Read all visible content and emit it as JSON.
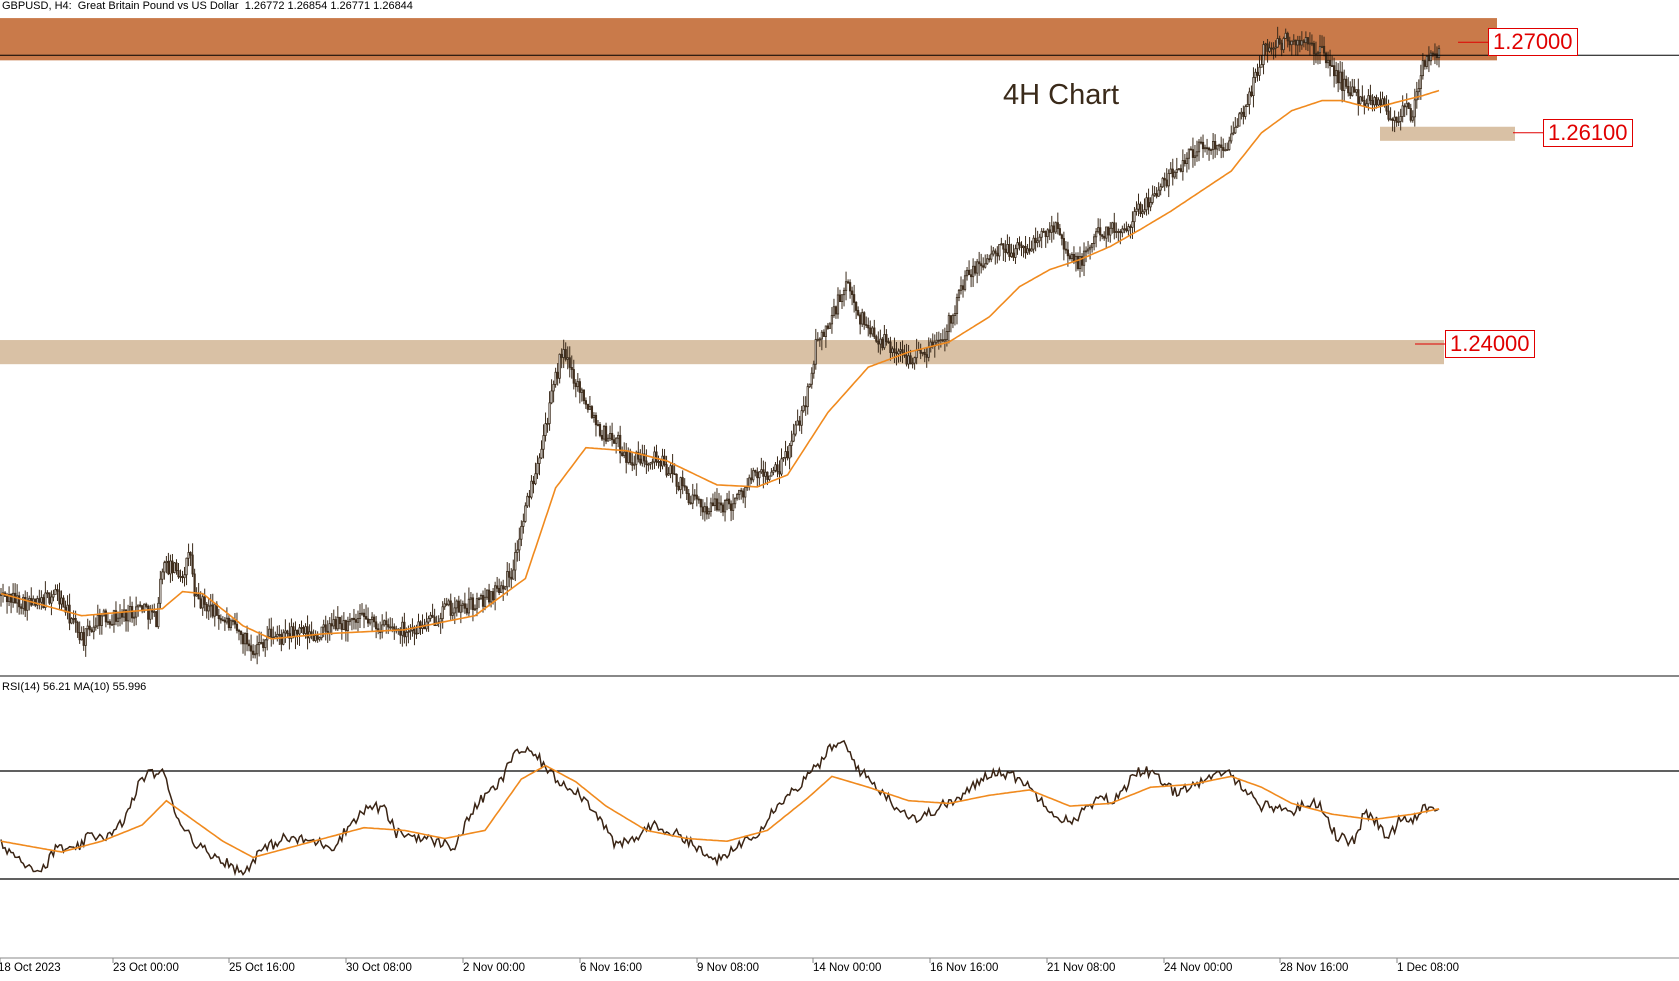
{
  "header": {
    "symbol_info": "GBPUSD, H4:  Great Britain Pound vs US Dollar  1.26772 1.26854 1.26771 1.26844"
  },
  "annotation": {
    "label": "4H Chart"
  },
  "levels": [
    {
      "label": "1.27000",
      "value": 1.27,
      "zone_low": 1.268,
      "zone_high": 1.2722,
      "color": "#c97a4a"
    },
    {
      "label": "1.26100",
      "value": 1.261,
      "zone_low": 1.26,
      "zone_high": 1.2614,
      "color": "#d9c1a5"
    },
    {
      "label": "1.24000",
      "value": 1.24,
      "zone_low": 1.2378,
      "zone_high": 1.2402,
      "color": "#d9c1a5"
    }
  ],
  "rsi": {
    "label": "RSI(14) 56.21 MA(10) 55.996",
    "rsi_value": 56.21,
    "ma_value": 55.996,
    "levels": [
      70,
      30
    ],
    "line_color": "#3a2414",
    "ma_color": "#f08a1e"
  },
  "chart_data": {
    "type": "candlestick",
    "symbol": "GBPUSD",
    "timeframe": "H4",
    "moving_average_color": "#f08a1e",
    "x_tick_labels": [
      "18 Oct 2023",
      "23 Oct 00:00",
      "25 Oct 16:00",
      "30 Oct 08:00",
      "2 Nov 00:00",
      "6 Nov 16:00",
      "9 Nov 08:00",
      "14 Nov 00:00",
      "16 Nov 16:00",
      "21 Nov 08:00",
      "24 Nov 00:00",
      "28 Nov 16:00",
      "1 Dec 08:00"
    ],
    "ylim": [
      1.208,
      1.2736
    ],
    "close_path": [
      [
        0,
        1.2148
      ],
      [
        18,
        1.2138
      ],
      [
        27,
        1.2152
      ],
      [
        36,
        1.212
      ],
      [
        41,
        1.2105
      ],
      [
        48,
        1.2125
      ],
      [
        60,
        1.2128
      ],
      [
        70,
        1.2138
      ],
      [
        77,
        1.2125
      ],
      [
        80,
        1.2178
      ],
      [
        90,
        1.217
      ],
      [
        94,
        1.219
      ],
      [
        96,
        1.2145
      ],
      [
        104,
        1.2135
      ],
      [
        110,
        1.2125
      ],
      [
        118,
        1.211
      ],
      [
        126,
        1.2095
      ],
      [
        133,
        1.211
      ],
      [
        140,
        1.2105
      ],
      [
        146,
        1.2112
      ],
      [
        155,
        1.2108
      ],
      [
        160,
        1.2112
      ],
      [
        166,
        1.212
      ],
      [
        173,
        1.2118
      ],
      [
        180,
        1.2125
      ],
      [
        187,
        1.2118
      ],
      [
        194,
        1.2115
      ],
      [
        204,
        1.2115
      ],
      [
        212,
        1.212
      ],
      [
        220,
        1.2135
      ],
      [
        228,
        1.2135
      ],
      [
        238,
        1.2142
      ],
      [
        246,
        1.2155
      ],
      [
        253,
        1.217
      ],
      [
        262,
        1.225
      ],
      [
        272,
        1.2335
      ],
      [
        278,
        1.239
      ],
      [
        286,
        1.2358
      ],
      [
        292,
        1.2335
      ],
      [
        298,
        1.231
      ],
      [
        304,
        1.2305
      ],
      [
        311,
        1.2285
      ],
      [
        317,
        1.2282
      ],
      [
        323,
        1.2288
      ],
      [
        330,
        1.2275
      ],
      [
        338,
        1.2255
      ],
      [
        344,
        1.224
      ],
      [
        350,
        1.2235
      ],
      [
        356,
        1.2238
      ],
      [
        362,
        1.224
      ],
      [
        368,
        1.2252
      ],
      [
        374,
        1.2268
      ],
      [
        380,
        1.2268
      ],
      [
        386,
        1.2272
      ],
      [
        392,
        1.23
      ],
      [
        400,
        1.235
      ],
      [
        404,
        1.2395
      ],
      [
        411,
        1.242
      ],
      [
        415,
        1.244
      ],
      [
        420,
        1.2455
      ],
      [
        426,
        1.2425
      ],
      [
        432,
        1.241
      ],
      [
        438,
        1.24
      ],
      [
        448,
        1.2385
      ],
      [
        458,
        1.239
      ],
      [
        468,
        1.241
      ],
      [
        478,
        1.2462
      ],
      [
        488,
        1.2482
      ],
      [
        498,
        1.2492
      ],
      [
        508,
        1.2492
      ],
      [
        518,
        1.2508
      ],
      [
        524,
        1.252
      ],
      [
        530,
        1.248
      ],
      [
        536,
        1.248
      ],
      [
        544,
        1.251
      ],
      [
        556,
        1.2512
      ],
      [
        566,
        1.2535
      ],
      [
        576,
        1.2555
      ],
      [
        584,
        1.2575
      ],
      [
        590,
        1.259
      ],
      [
        600,
        1.2595
      ],
      [
        610,
        1.26
      ],
      [
        620,
        1.265
      ],
      [
        626,
        1.269
      ],
      [
        632,
        1.2695
      ],
      [
        638,
        1.27
      ],
      [
        648,
        1.2695
      ],
      [
        654,
        1.269
      ],
      [
        660,
        1.2672
      ],
      [
        666,
        1.2655
      ],
      [
        672,
        1.2645
      ],
      [
        678,
        1.264
      ],
      [
        684,
        1.2642
      ],
      [
        690,
        1.262
      ],
      [
        696,
        1.2632
      ],
      [
        700,
        1.2625
      ],
      [
        705,
        1.2675
      ],
      [
        711,
        1.269
      ],
      [
        713,
        1.2684
      ]
    ],
    "moving_average_path": [
      [
        0,
        1.215
      ],
      [
        40,
        1.2128
      ],
      [
        80,
        1.2135
      ],
      [
        90,
        1.2152
      ],
      [
        100,
        1.215
      ],
      [
        120,
        1.2118
      ],
      [
        134,
        1.2105
      ],
      [
        160,
        1.211
      ],
      [
        200,
        1.2114
      ],
      [
        235,
        1.2128
      ],
      [
        260,
        1.2165
      ],
      [
        275,
        1.2255
      ],
      [
        290,
        1.2295
      ],
      [
        310,
        1.2292
      ],
      [
        330,
        1.2282
      ],
      [
        355,
        1.2258
      ],
      [
        375,
        1.2256
      ],
      [
        390,
        1.2268
      ],
      [
        410,
        1.233
      ],
      [
        430,
        1.2375
      ],
      [
        450,
        1.239
      ],
      [
        470,
        1.24
      ],
      [
        490,
        1.2425
      ],
      [
        505,
        1.2455
      ],
      [
        520,
        1.2472
      ],
      [
        535,
        1.2482
      ],
      [
        550,
        1.2495
      ],
      [
        565,
        1.2512
      ],
      [
        580,
        1.253
      ],
      [
        595,
        1.255
      ],
      [
        610,
        1.257
      ],
      [
        625,
        1.2608
      ],
      [
        640,
        1.263
      ],
      [
        655,
        1.264
      ],
      [
        665,
        1.264
      ],
      [
        680,
        1.2632
      ],
      [
        695,
        1.264
      ],
      [
        705,
        1.2645
      ],
      [
        713,
        1.265
      ]
    ],
    "rsi_path": [
      [
        0,
        43
      ],
      [
        10,
        37
      ],
      [
        20,
        33
      ],
      [
        28,
        42
      ],
      [
        36,
        40
      ],
      [
        44,
        46
      ],
      [
        55,
        46
      ],
      [
        62,
        53
      ],
      [
        70,
        68
      ],
      [
        80,
        70
      ],
      [
        88,
        52
      ],
      [
        98,
        42
      ],
      [
        110,
        37
      ],
      [
        120,
        32
      ],
      [
        128,
        40
      ],
      [
        140,
        45
      ],
      [
        155,
        44
      ],
      [
        165,
        42
      ],
      [
        175,
        52
      ],
      [
        183,
        57
      ],
      [
        190,
        56
      ],
      [
        196,
        47
      ],
      [
        205,
        46
      ],
      [
        215,
        44
      ],
      [
        225,
        42
      ],
      [
        235,
        57
      ],
      [
        248,
        66
      ],
      [
        255,
        78
      ],
      [
        265,
        76
      ],
      [
        275,
        67
      ],
      [
        285,
        63
      ],
      [
        295,
        55
      ],
      [
        305,
        42
      ],
      [
        315,
        45
      ],
      [
        322,
        50
      ],
      [
        330,
        48
      ],
      [
        340,
        45
      ],
      [
        350,
        38
      ],
      [
        358,
        37
      ],
      [
        366,
        43
      ],
      [
        376,
        48
      ],
      [
        385,
        58
      ],
      [
        395,
        64
      ],
      [
        405,
        72
      ],
      [
        412,
        79
      ],
      [
        418,
        80
      ],
      [
        426,
        70
      ],
      [
        436,
        63
      ],
      [
        445,
        56
      ],
      [
        455,
        52
      ],
      [
        466,
        57
      ],
      [
        476,
        60
      ],
      [
        486,
        67
      ],
      [
        492,
        70
      ],
      [
        498,
        69
      ],
      [
        506,
        67
      ],
      [
        512,
        62
      ],
      [
        518,
        58
      ],
      [
        524,
        53
      ],
      [
        530,
        51
      ],
      [
        538,
        56
      ],
      [
        546,
        60
      ],
      [
        552,
        59
      ],
      [
        556,
        62
      ],
      [
        562,
        70
      ],
      [
        568,
        70
      ],
      [
        574,
        67
      ],
      [
        582,
        62
      ],
      [
        590,
        65
      ],
      [
        598,
        66
      ],
      [
        606,
        70
      ],
      [
        614,
        66
      ],
      [
        621,
        60
      ],
      [
        625,
        57
      ],
      [
        630,
        57
      ],
      [
        636,
        56
      ],
      [
        640,
        55
      ],
      [
        648,
        58
      ],
      [
        654,
        58
      ],
      [
        662,
        46
      ],
      [
        668,
        44
      ],
      [
        672,
        45
      ],
      [
        676,
        55
      ],
      [
        682,
        51
      ],
      [
        688,
        45
      ],
      [
        694,
        53
      ],
      [
        700,
        52
      ],
      [
        705,
        57
      ],
      [
        712,
        55
      ],
      [
        713,
        56
      ]
    ],
    "rsi_ma_path": [
      [
        0,
        44
      ],
      [
        30,
        40
      ],
      [
        50,
        44
      ],
      [
        70,
        50
      ],
      [
        82,
        59
      ],
      [
        95,
        52
      ],
      [
        110,
        44
      ],
      [
        125,
        38
      ],
      [
        140,
        41
      ],
      [
        160,
        45
      ],
      [
        180,
        49
      ],
      [
        200,
        48
      ],
      [
        220,
        45
      ],
      [
        240,
        48
      ],
      [
        258,
        67
      ],
      [
        270,
        72
      ],
      [
        285,
        66
      ],
      [
        300,
        57
      ],
      [
        320,
        48
      ],
      [
        340,
        45
      ],
      [
        360,
        44
      ],
      [
        380,
        48
      ],
      [
        400,
        60
      ],
      [
        412,
        68
      ],
      [
        430,
        64
      ],
      [
        450,
        59
      ],
      [
        470,
        58
      ],
      [
        490,
        61
      ],
      [
        510,
        63
      ],
      [
        530,
        57
      ],
      [
        550,
        58
      ],
      [
        570,
        64
      ],
      [
        590,
        65
      ],
      [
        610,
        68
      ],
      [
        625,
        64
      ],
      [
        640,
        58
      ],
      [
        660,
        54
      ],
      [
        680,
        52
      ],
      [
        700,
        54
      ],
      [
        713,
        56
      ]
    ]
  }
}
